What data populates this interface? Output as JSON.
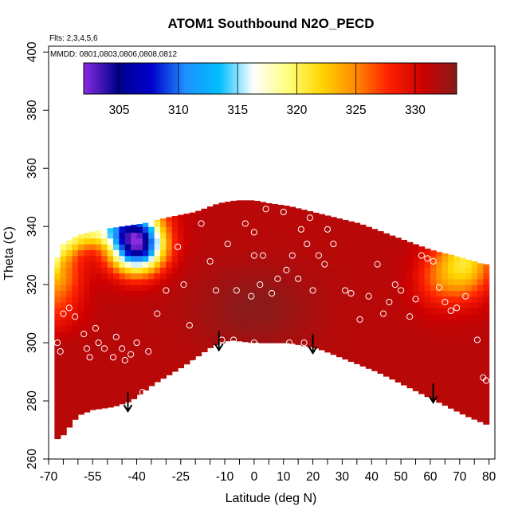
{
  "chart_data": {
    "type": "heatmap",
    "title": "ATOM1 Southbound N2O_PECD",
    "subtitle_flights": "Flts: 2,3,4,5,6",
    "subtitle_dates": "MMDD: 0801,0803,0806,0808,0812",
    "xlabel": "Latitude (deg N)",
    "ylabel": "Theta (C)",
    "xlim": [
      -70,
      82
    ],
    "ylim": [
      260,
      402
    ],
    "x_tick_labels": [
      "-70",
      "-55",
      "-40",
      "-25",
      "-10",
      "0",
      "10",
      "20",
      "30",
      "40",
      "50",
      "60",
      "70",
      "80"
    ],
    "x_tick_values": [
      -70,
      -55,
      -40,
      -25,
      -10,
      0,
      10,
      20,
      30,
      40,
      50,
      60,
      70,
      80
    ],
    "x_minor_ticks": [
      -65,
      -60,
      -50,
      -45,
      -35,
      -30,
      -20,
      -15,
      -5,
      5,
      15,
      25,
      35,
      45,
      55,
      65,
      75
    ],
    "y_tick_labels": [
      "260",
      "280",
      "300",
      "320",
      "340",
      "360",
      "380",
      "400"
    ],
    "y_tick_values": [
      260,
      280,
      300,
      320,
      340,
      360,
      380,
      400
    ],
    "colorbar": {
      "min": 302,
      "max": 333.5,
      "tick_labels": [
        "305",
        "310",
        "315",
        "320",
        "325",
        "330"
      ],
      "tick_values": [
        305,
        310,
        315,
        320,
        325,
        330
      ],
      "boundaries": [
        302,
        305,
        310,
        315,
        320,
        325,
        330,
        333.5
      ],
      "colors": [
        "#8a2be2",
        "#00008b",
        "#0000cd",
        "#1e90ff",
        "#00bfff",
        "#ffffff",
        "#ffff80",
        "#ffd700",
        "#ff8c00",
        "#ff2000",
        "#cc0000",
        "#8b1a1a"
      ]
    },
    "surface": {
      "top_boundary": [
        [
          -68,
          327
        ],
        [
          -65,
          334
        ],
        [
          -60,
          337
        ],
        [
          -52,
          339
        ],
        [
          -45,
          340
        ],
        [
          -38,
          341
        ],
        [
          -30,
          343
        ],
        [
          -20,
          345
        ],
        [
          -12,
          348
        ],
        [
          -6,
          349
        ],
        [
          0,
          349
        ],
        [
          5,
          348
        ],
        [
          12,
          347
        ],
        [
          20,
          345
        ],
        [
          28,
          343
        ],
        [
          36,
          341
        ],
        [
          44,
          338
        ],
        [
          52,
          335
        ],
        [
          60,
          332
        ],
        [
          68,
          330
        ],
        [
          75,
          328
        ],
        [
          78,
          327
        ]
      ],
      "bottom_boundary": [
        [
          79,
          272
        ],
        [
          72,
          275
        ],
        [
          62,
          280
        ],
        [
          52,
          285
        ],
        [
          42,
          290
        ],
        [
          32,
          294
        ],
        [
          22,
          298
        ],
        [
          12,
          300
        ],
        [
          0,
          300
        ],
        [
          -8,
          301
        ],
        [
          -14,
          299
        ],
        [
          -24,
          292
        ],
        [
          -34,
          286
        ],
        [
          -42,
          280
        ],
        [
          -48,
          278
        ],
        [
          -55,
          277
        ],
        [
          -60,
          275
        ],
        [
          -66,
          267
        ]
      ]
    },
    "low_region_center": {
      "lat": -40,
      "theta": 334,
      "value": 303
    },
    "observations": [
      [
        -67,
        300
      ],
      [
        -66,
        297
      ],
      [
        -65,
        310
      ],
      [
        -63,
        312
      ],
      [
        -61,
        309
      ],
      [
        -58,
        303
      ],
      [
        -57,
        298
      ],
      [
        -56,
        295
      ],
      [
        -54,
        305
      ],
      [
        -53,
        300
      ],
      [
        -51,
        298
      ],
      [
        -48,
        295
      ],
      [
        -47,
        302
      ],
      [
        -45,
        298
      ],
      [
        -44,
        294
      ],
      [
        -43,
        278
      ],
      [
        -42,
        296
      ],
      [
        -40,
        300
      ],
      [
        -38,
        283
      ],
      [
        -36,
        297
      ],
      [
        -33,
        310
      ],
      [
        -30,
        318
      ],
      [
        -26,
        333
      ],
      [
        -24,
        320
      ],
      [
        -22,
        306
      ],
      [
        -20,
        293
      ],
      [
        -18,
        341
      ],
      [
        -15,
        328
      ],
      [
        -13,
        318
      ],
      [
        -11,
        301
      ],
      [
        -9,
        334
      ],
      [
        -7,
        301
      ],
      [
        -6,
        318
      ],
      [
        -3,
        341
      ],
      [
        -1,
        316
      ],
      [
        0,
        330
      ],
      [
        0,
        338
      ],
      [
        0,
        300
      ],
      [
        1,
        299
      ],
      [
        2,
        320
      ],
      [
        3,
        330
      ],
      [
        4,
        346
      ],
      [
        6,
        317
      ],
      [
        8,
        322
      ],
      [
        10,
        345
      ],
      [
        11,
        325
      ],
      [
        12,
        300
      ],
      [
        13,
        330
      ],
      [
        15,
        322
      ],
      [
        16,
        339
      ],
      [
        17,
        300
      ],
      [
        18,
        334
      ],
      [
        19,
        343
      ],
      [
        20,
        318
      ],
      [
        22,
        330
      ],
      [
        24,
        327
      ],
      [
        25,
        339
      ],
      [
        27,
        334
      ],
      [
        29,
        344
      ],
      [
        31,
        318
      ],
      [
        33,
        317
      ],
      [
        36,
        308
      ],
      [
        39,
        316
      ],
      [
        42,
        327
      ],
      [
        44,
        310
      ],
      [
        46,
        314
      ],
      [
        48,
        320
      ],
      [
        50,
        318
      ],
      [
        53,
        309
      ],
      [
        55,
        315
      ],
      [
        57,
        330
      ],
      [
        59,
        329
      ],
      [
        61,
        328
      ],
      [
        63,
        319
      ],
      [
        65,
        314
      ],
      [
        67,
        311
      ],
      [
        69,
        312
      ],
      [
        72,
        316
      ],
      [
        76,
        301
      ],
      [
        78,
        288
      ],
      [
        79,
        287
      ]
    ],
    "arrows": [
      {
        "lat": -43,
        "theta": 283
      },
      {
        "lat": -12,
        "theta": 304
      },
      {
        "lat": 20,
        "theta": 303
      },
      {
        "lat": 61,
        "theta": 286
      }
    ]
  }
}
